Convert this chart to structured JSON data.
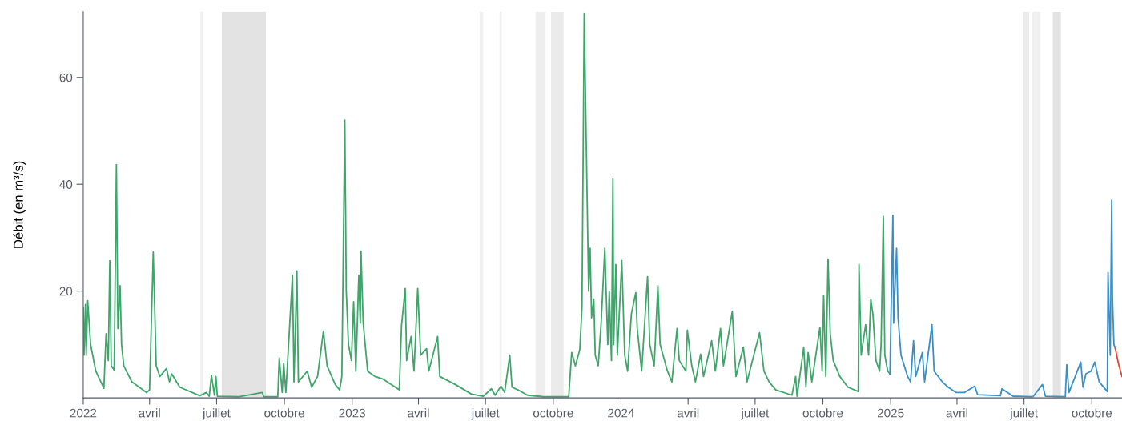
{
  "chart_data": {
    "type": "line",
    "ylabel": "Débit (en m³/s)",
    "xlim": [
      "2022-01-01",
      "2025-11-11"
    ],
    "ylim": [
      0,
      72.3
    ],
    "yticks": [
      20,
      40,
      60
    ],
    "xticks": [
      {
        "value": "2022-01-01",
        "label": "2022"
      },
      {
        "value": "2022-04-01",
        "label": "avril"
      },
      {
        "value": "2022-07-01",
        "label": "juillet"
      },
      {
        "value": "2022-10-01",
        "label": "octobre"
      },
      {
        "value": "2023-01-01",
        "label": "2023"
      },
      {
        "value": "2023-04-01",
        "label": "avril"
      },
      {
        "value": "2023-07-01",
        "label": "juillet"
      },
      {
        "value": "2023-10-01",
        "label": "octobre"
      },
      {
        "value": "2024-01-01",
        "label": "2024"
      },
      {
        "value": "2024-04-01",
        "label": "avril"
      },
      {
        "value": "2024-07-01",
        "label": "juillet"
      },
      {
        "value": "2024-10-01",
        "label": "octobre"
      },
      {
        "value": "2025-01-01",
        "label": "2025"
      },
      {
        "value": "2025-04-01",
        "label": "avril"
      },
      {
        "value": "2025-07-01",
        "label": "juillet"
      },
      {
        "value": "2025-10-01",
        "label": "octobre"
      }
    ],
    "grid": false,
    "marker": "none",
    "line_style": "solid",
    "bands": [
      {
        "axis": "x",
        "from": "2022-06-09",
        "to": "2022-06-12",
        "color": "#f0f0f0"
      },
      {
        "axis": "x",
        "from": "2022-07-08",
        "to": "2022-09-06",
        "color": "#e3e3e3"
      },
      {
        "axis": "x",
        "from": "2023-06-23",
        "to": "2023-06-28",
        "color": "#f0f0f0"
      },
      {
        "axis": "x",
        "from": "2023-07-20",
        "to": "2023-07-23",
        "color": "#f0f0f0"
      },
      {
        "axis": "x",
        "from": "2023-09-07",
        "to": "2023-09-20",
        "color": "#eeeeee"
      },
      {
        "axis": "x",
        "from": "2023-09-28",
        "to": "2023-10-15",
        "color": "#ebebeb"
      },
      {
        "axis": "x",
        "from": "2025-06-30",
        "to": "2025-07-08",
        "color": "#ebebeb"
      },
      {
        "axis": "x",
        "from": "2025-07-12",
        "to": "2025-07-23",
        "color": "#f0f0f0"
      },
      {
        "axis": "x",
        "from": "2025-08-09",
        "to": "2025-08-20",
        "color": "#e3e3e3"
      }
    ],
    "series": [
      {
        "color": "#3fa66b",
        "x": [
          "2022-01-01",
          "2022-01-02",
          "2022-01-04",
          "2022-01-05",
          "2022-01-07",
          "2022-01-11",
          "2022-01-18",
          "2022-01-29",
          "2022-02-01",
          "2022-02-04",
          "2022-02-06",
          "2022-02-08",
          "2022-02-12",
          "2022-02-15",
          "2022-02-17",
          "2022-02-20",
          "2022-02-22",
          "2022-02-25",
          "2022-03-08",
          "2022-03-28",
          "2022-04-01",
          "2022-04-06",
          "2022-04-10",
          "2022-04-15",
          "2022-04-24",
          "2022-04-28",
          "2022-05-01",
          "2022-05-12",
          "2022-06-08",
          "2022-06-17",
          "2022-06-21",
          "2022-06-24",
          "2022-06-28",
          "2022-06-30",
          "2022-07-02",
          "2022-08-01",
          "2022-09-01",
          "2022-09-03",
          "2022-09-22",
          "2022-09-24",
          "2022-09-28",
          "2022-09-30",
          "2022-10-03",
          "2022-10-12",
          "2022-10-14",
          "2022-10-18",
          "2022-10-20",
          "2022-11-01",
          "2022-11-07",
          "2022-11-15",
          "2022-11-23",
          "2022-11-28",
          "2022-12-09",
          "2022-12-15",
          "2022-12-18",
          "2022-12-22",
          "2022-12-24",
          "2022-12-27",
          "2022-12-31",
          "2023-01-03",
          "2023-01-06",
          "2023-01-10",
          "2023-01-12",
          "2023-01-13",
          "2023-01-16",
          "2023-01-22",
          "2023-02-01",
          "2023-02-12",
          "2023-03-06",
          "2023-03-09",
          "2023-03-14",
          "2023-03-16",
          "2023-03-22",
          "2023-03-26",
          "2023-03-31",
          "2023-04-04",
          "2023-04-12",
          "2023-04-15",
          "2023-04-27",
          "2023-04-30",
          "2023-05-21",
          "2023-06-12",
          "2023-06-28",
          "2023-07-09",
          "2023-07-14",
          "2023-07-22",
          "2023-07-27",
          "2023-08-03",
          "2023-08-06",
          "2023-08-14",
          "2023-08-27",
          "2023-09-18",
          "2023-10-22",
          "2023-10-26",
          "2023-10-31",
          "2023-11-06",
          "2023-11-09",
          "2023-11-12",
          "2023-11-15",
          "2023-11-18",
          "2023-11-20",
          "2023-11-22",
          "2023-11-25",
          "2023-11-27",
          "2023-12-01",
          "2023-12-05",
          "2023-12-10",
          "2023-12-14",
          "2023-12-16",
          "2023-12-19",
          "2023-12-21",
          "2023-12-22",
          "2023-12-25",
          "2023-12-27",
          "2024-01-02",
          "2024-01-06",
          "2024-01-10",
          "2024-01-15",
          "2024-01-21",
          "2024-01-23",
          "2024-01-29",
          "2024-02-06",
          "2024-02-09",
          "2024-02-15",
          "2024-02-20",
          "2024-02-23",
          "2024-03-04",
          "2024-03-10",
          "2024-03-17",
          "2024-03-20",
          "2024-03-29",
          "2024-03-31",
          "2024-04-06",
          "2024-04-11",
          "2024-04-18",
          "2024-04-22",
          "2024-05-03",
          "2024-05-08",
          "2024-05-15",
          "2024-05-19",
          "2024-05-31",
          "2024-06-05",
          "2024-06-15",
          "2024-06-20",
          "2024-07-07",
          "2024-07-13",
          "2024-07-20",
          "2024-07-29",
          "2024-08-20",
          "2024-08-25",
          "2024-08-27",
          "2024-09-05",
          "2024-09-08",
          "2024-09-11",
          "2024-09-16",
          "2024-09-27",
          "2024-09-30",
          "2024-10-02",
          "2024-10-05",
          "2024-10-08",
          "2024-10-11",
          "2024-10-15",
          "2024-10-24",
          "2024-11-04",
          "2024-11-18",
          "2024-11-19",
          "2024-11-22",
          "2024-11-28",
          "2024-12-02",
          "2024-12-05",
          "2024-12-08",
          "2024-12-12",
          "2024-12-17",
          "2024-12-19",
          "2024-12-22",
          "2024-12-24",
          "2024-12-28",
          "2024-12-31"
        ],
        "values": [
          16.8,
          8,
          17.5,
          8,
          18.2,
          10,
          5,
          1.8,
          12,
          7,
          25.7,
          6,
          5.2,
          43.7,
          13,
          21,
          10,
          6,
          3,
          1,
          1.5,
          27.3,
          6,
          4,
          5.5,
          3,
          4.5,
          2,
          0.4,
          1,
          0.3,
          4.2,
          0.5,
          4,
          0.3,
          0.2,
          1,
          0.2,
          0.2,
          7.5,
          1,
          6.5,
          1,
          23,
          3,
          23.8,
          3,
          5,
          2,
          4,
          12.5,
          6,
          2.5,
          1.5,
          4,
          52,
          20,
          10,
          7,
          18,
          5,
          23,
          14,
          27.5,
          14,
          5,
          4,
          3.5,
          1.5,
          13.5,
          20.5,
          7,
          11.5,
          5,
          20.5,
          8,
          9.2,
          5,
          11.5,
          4,
          2.5,
          0.7,
          0.3,
          1.7,
          0.5,
          2.2,
          1,
          8,
          2,
          1.5,
          0.5,
          0.2,
          0.2,
          8.5,
          6,
          9,
          17,
          72,
          45.7,
          20,
          28,
          15,
          18.5,
          8,
          6,
          14,
          28,
          10,
          20,
          7,
          41,
          10,
          25,
          8,
          25.7,
          8,
          5,
          15.7,
          19.7,
          13,
          5,
          22.7,
          10,
          6,
          21,
          10,
          5,
          3,
          13,
          7,
          5,
          12.7,
          6,
          3,
          8.2,
          4,
          10.7,
          5,
          13,
          6,
          16.2,
          4,
          9.5,
          3,
          12.2,
          5,
          3,
          1.5,
          0.5,
          4,
          0.3,
          9.5,
          2,
          8.5,
          3,
          13.2,
          5,
          19.2,
          4,
          26,
          12,
          7,
          4,
          2,
          1.2,
          25,
          8,
          13.7,
          8,
          18.5,
          15.5,
          7,
          5,
          10,
          34,
          8,
          5,
          4.5
        ]
      },
      {
        "color": "#3a8fc7",
        "x": [
          "2024-12-31",
          "2025-01-01",
          "2025-01-04",
          "2025-01-05",
          "2025-01-09",
          "2025-01-11",
          "2025-01-15",
          "2025-01-24",
          "2025-01-28",
          "2025-02-01",
          "2025-02-04",
          "2025-02-13",
          "2025-02-16",
          "2025-02-26",
          "2025-03-01",
          "2025-03-12",
          "2025-03-20",
          "2025-03-31",
          "2025-04-11",
          "2025-04-25",
          "2025-04-29",
          "2025-05-30",
          "2025-06-01",
          "2025-06-16",
          "2025-07-13",
          "2025-07-26",
          "2025-07-30",
          "2025-08-26",
          "2025-08-28",
          "2025-08-31",
          "2025-09-16",
          "2025-09-19",
          "2025-09-23",
          "2025-09-30",
          "2025-10-05",
          "2025-10-11",
          "2025-10-22",
          "2025-10-23",
          "2025-10-26",
          "2025-10-28",
          "2025-10-29",
          "2025-10-31",
          "2025-11-02"
        ],
        "values": [
          4.5,
          12,
          34.2,
          14,
          28,
          15,
          8,
          4,
          3,
          10.7,
          4,
          8.5,
          3,
          13.7,
          5,
          3,
          2,
          1,
          1,
          2.2,
          0.6,
          0.4,
          1.7,
          0.3,
          0.2,
          2.5,
          0.3,
          0.2,
          6.2,
          1,
          6.7,
          2,
          4.5,
          5,
          6.7,
          3,
          1.2,
          23.5,
          8,
          37,
          18.7,
          10,
          9.2
        ]
      },
      {
        "color": "#e8442c",
        "x": [
          "2025-11-02",
          "2025-11-06",
          "2025-11-11"
        ],
        "values": [
          9.2,
          6.5,
          4
        ]
      }
    ]
  }
}
